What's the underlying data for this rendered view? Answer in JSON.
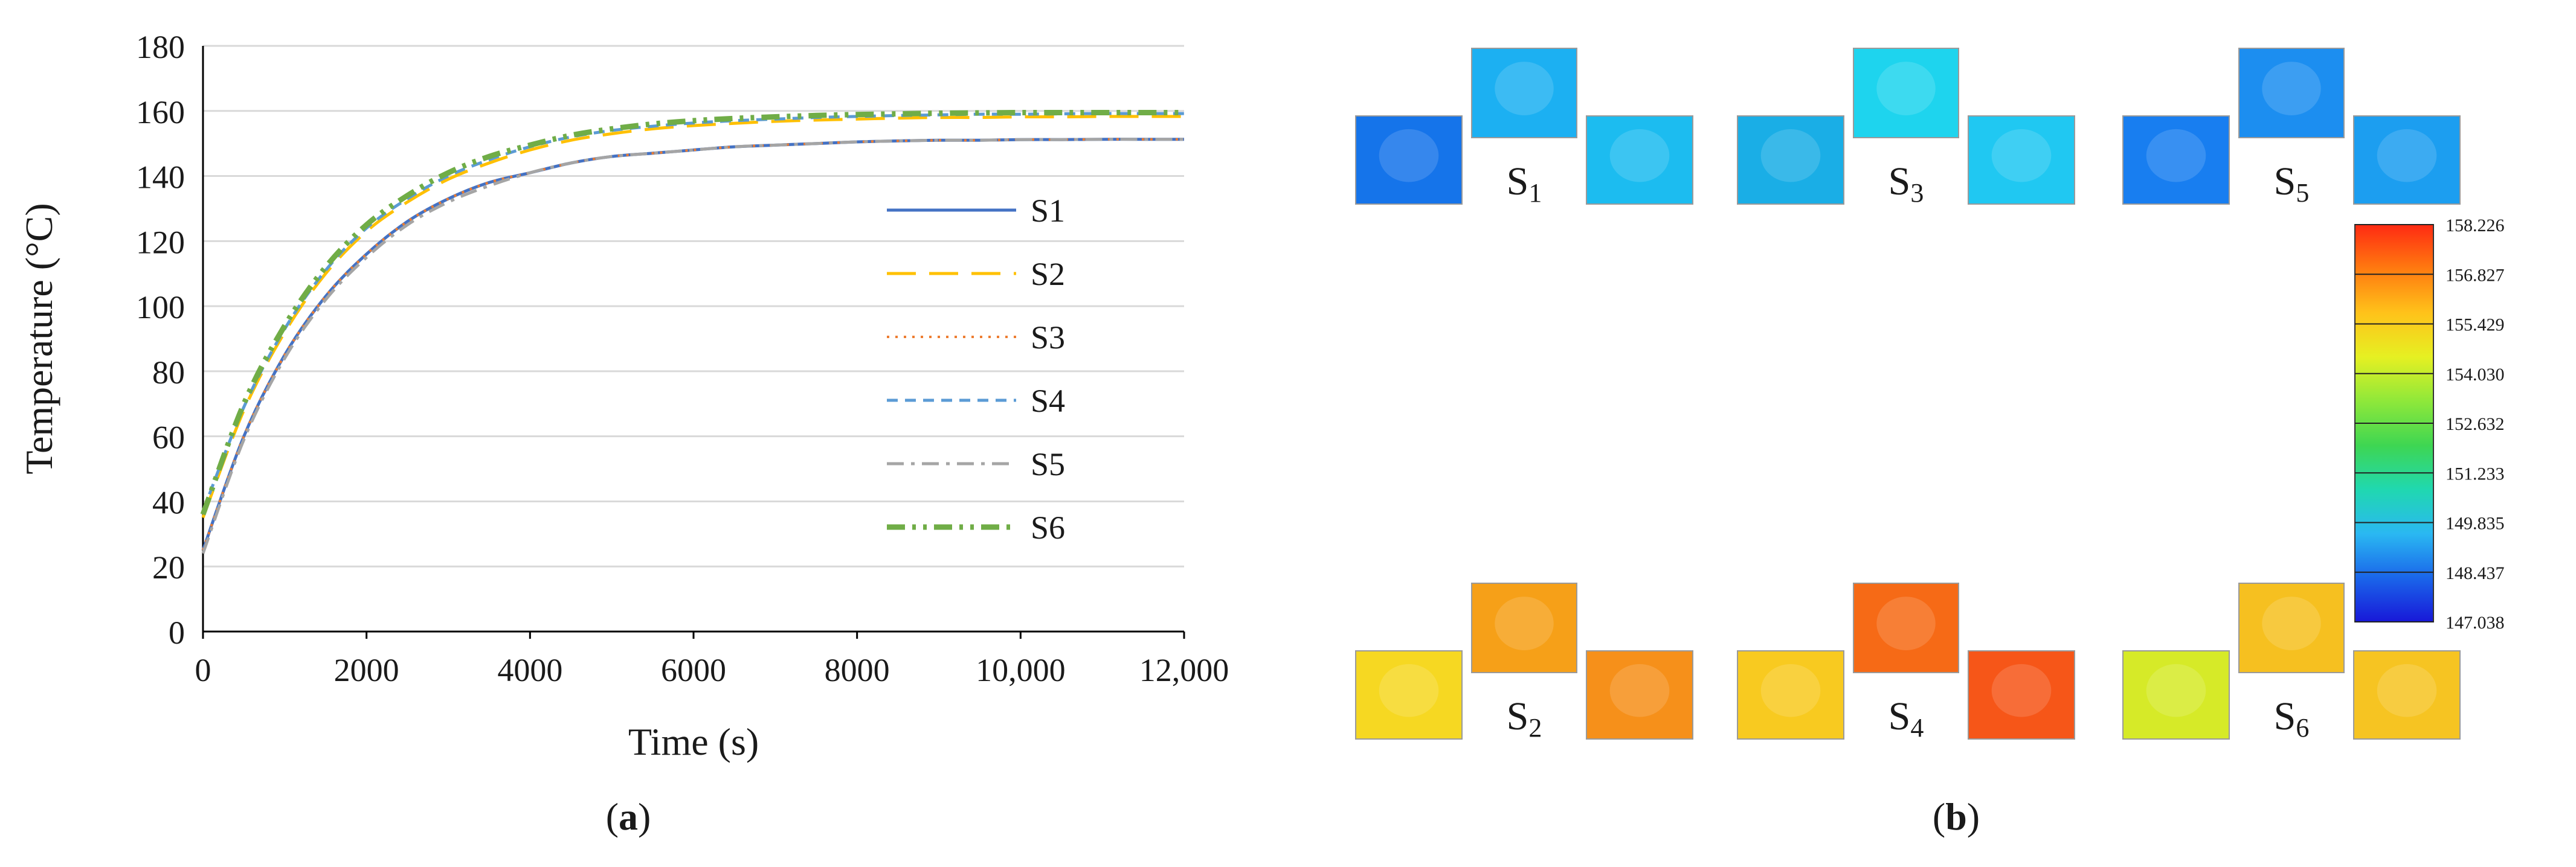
{
  "panels": {
    "a": {
      "label_open": "(",
      "label_letter": "a",
      "label_close": ")"
    },
    "b": {
      "label_open": "(",
      "label_letter": "b",
      "label_close": ")"
    }
  },
  "chart_data": {
    "type": "line",
    "xlabel": "Time (s)",
    "ylabel": "Temperature (°C)",
    "xlim": [
      0,
      12000
    ],
    "ylim": [
      0,
      180
    ],
    "xticks": [
      0,
      2000,
      4000,
      6000,
      8000,
      10000,
      12000
    ],
    "xtick_labels": [
      "0",
      "2000",
      "4000",
      "6000",
      "8000",
      "10,000",
      "12,000"
    ],
    "yticks": [
      0,
      20,
      40,
      60,
      80,
      100,
      120,
      140,
      160,
      180
    ],
    "ytick_labels": [
      "0",
      "20",
      "40",
      "60",
      "80",
      "100",
      "120",
      "140",
      "160",
      "180"
    ],
    "grid": "horizontal",
    "legend_position": "right",
    "x": [
      0,
      500,
      1000,
      1500,
      2000,
      2500,
      3000,
      3500,
      4000,
      4500,
      5000,
      5500,
      6000,
      6500,
      7000,
      7500,
      8000,
      8500,
      9000,
      9500,
      10000,
      10500,
      11000,
      11500,
      12000
    ],
    "series": [
      {
        "name": "S1",
        "color": "#4472c4",
        "dash": "solid",
        "values": [
          25,
          60,
          85,
          103,
          116,
          126,
          133,
          138,
          141,
          144,
          146,
          147,
          148,
          149,
          149.5,
          150,
          150.5,
          150.8,
          151,
          151,
          151.2,
          151.2,
          151.3,
          151.3,
          151.3
        ]
      },
      {
        "name": "S2",
        "color": "#ffc000",
        "dash": "longdash",
        "values": [
          35,
          68,
          92,
          110,
          123,
          132,
          139,
          144,
          148,
          151,
          153,
          154.5,
          155.5,
          156.2,
          156.8,
          157.2,
          157.5,
          157.8,
          158,
          158,
          158.2,
          158.2,
          158.3,
          158.3,
          158.3
        ]
      },
      {
        "name": "S3",
        "color": "#ed7d31",
        "dash": "dotted",
        "values": [
          25,
          60,
          85,
          103,
          116,
          126,
          133,
          138,
          141,
          144,
          146,
          147,
          148,
          149,
          149.5,
          150,
          150.5,
          150.8,
          151,
          151,
          151.2,
          151.2,
          151.3,
          151.3,
          151.3
        ]
      },
      {
        "name": "S4",
        "color": "#5b9bd5",
        "dash": "dashed",
        "values": [
          37,
          69,
          93,
          111,
          124,
          133,
          140,
          145,
          149,
          152,
          154,
          155.3,
          156.3,
          157,
          157.5,
          158,
          158.3,
          158.6,
          158.8,
          159,
          159,
          159.1,
          159.2,
          159.2,
          159.2
        ]
      },
      {
        "name": "S5",
        "color": "#a5a5a5",
        "dash": "dashdot",
        "values": [
          24,
          59,
          84,
          102,
          115,
          125,
          132,
          137,
          141,
          144,
          146,
          147,
          148,
          149,
          149.5,
          150,
          150.5,
          150.8,
          151,
          151,
          151.2,
          151.2,
          151.3,
          151.3,
          151.3
        ]
      },
      {
        "name": "S6",
        "color": "#70ad47",
        "dash": "dashdotdot",
        "values": [
          36,
          70,
          94,
          112,
          125,
          134,
          141,
          146,
          149.5,
          152.5,
          154.5,
          156,
          157,
          157.7,
          158.2,
          158.6,
          158.9,
          159.1,
          159.3,
          159.4,
          159.5,
          159.5,
          159.5,
          159.5,
          159.5
        ]
      }
    ]
  },
  "contour": {
    "colorbar": {
      "ticks": [
        "158.226",
        "156.827",
        "155.429",
        "154.030",
        "152.632",
        "151.233",
        "149.835",
        "148.437",
        "147.038"
      ],
      "min": 147.038,
      "max": 158.226,
      "colors": [
        "#ff2a12",
        "#ff7a10",
        "#ffc21a",
        "#e6f022",
        "#8fe83a",
        "#3ed652",
        "#20d8b0",
        "#2ab8f2",
        "#1a66ea",
        "#1818d8"
      ]
    },
    "sensor_groups": [
      {
        "label": "S",
        "sub": "1",
        "colors": [
          "#1574ea",
          "#1cb0f2",
          "#1cbcf0"
        ]
      },
      {
        "label": "S",
        "sub": "3",
        "colors": [
          "#1aaee6",
          "#1ed4ee",
          "#20c8f2"
        ]
      },
      {
        "label": "S",
        "sub": "5",
        "colors": [
          "#187ef0",
          "#1c8ef0",
          "#1c9ef0"
        ]
      },
      {
        "label": "S",
        "sub": "2",
        "colors": [
          "#f6d822",
          "#f6a018",
          "#f6901a"
        ]
      },
      {
        "label": "S",
        "sub": "4",
        "colors": [
          "#f8ca20",
          "#f66a16",
          "#f65618"
        ]
      },
      {
        "label": "S",
        "sub": "6",
        "colors": [
          "#d6ea28",
          "#f6c020",
          "#f6c422"
        ]
      }
    ]
  }
}
